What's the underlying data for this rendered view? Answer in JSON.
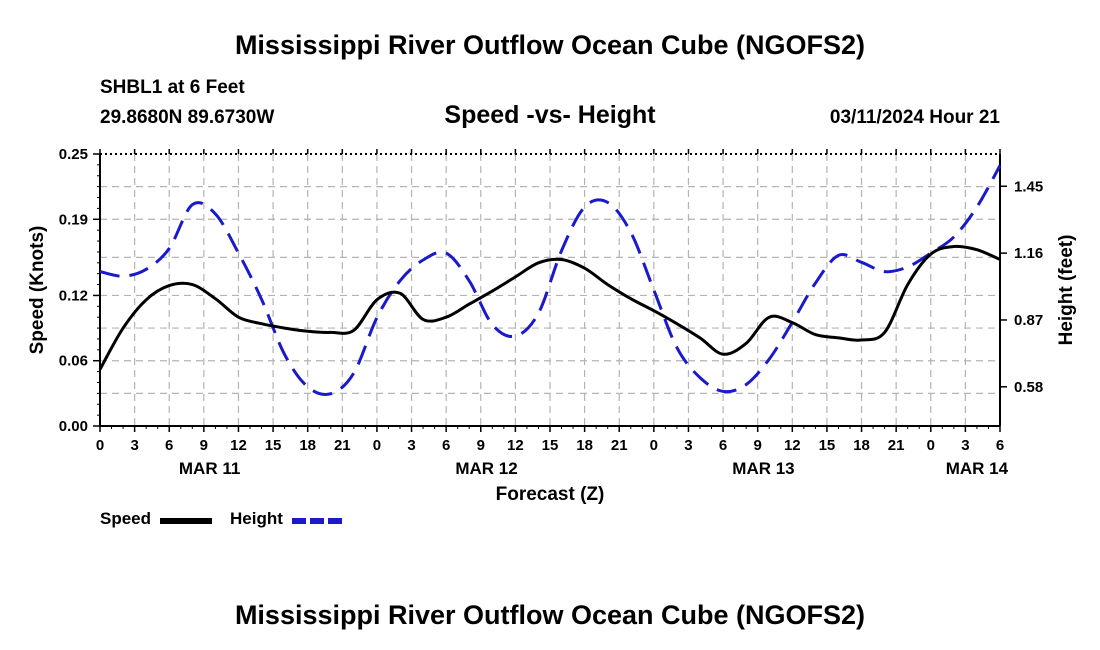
{
  "title": "Mississippi River Outflow Ocean Cube (NGOFS2)",
  "title_repeat": "Mississippi River Outflow Ocean Cube (NGOFS2)",
  "station": "SHBL1 at 6 Feet",
  "coordinates": "29.8680N  89.6730W",
  "forecast_time": "03/11/2024 Hour 21",
  "legend": {
    "speed_label": "Speed",
    "height_label": "Height"
  },
  "colors": {
    "speed": "#000000",
    "height": "#1a1acc",
    "grid": "#b4b4b4"
  },
  "chart_data": {
    "type": "line",
    "title": "Speed -vs- Height",
    "xlabel": "Forecast (Z)",
    "ylabel": "Speed (Knots)",
    "y2label": "Height (feet)",
    "grid": true,
    "xlim": [
      0,
      78
    ],
    "ylim": [
      0,
      0.25
    ],
    "y2lim": [
      0.41,
      1.59
    ],
    "yticks": [
      0,
      0.06,
      0.12,
      0.19,
      0.25
    ],
    "ytick_labels": [
      "0.00",
      "0.06",
      "0.12",
      "0.19",
      "0.25"
    ],
    "y2ticks": [
      0.58,
      0.87,
      1.16,
      1.45
    ],
    "y2tick_labels": [
      "0.58",
      "0.87",
      "1.16",
      "1.45"
    ],
    "xticks": [
      0,
      3,
      6,
      9,
      12,
      15,
      18,
      21,
      24,
      27,
      30,
      33,
      36,
      39,
      42,
      45,
      48,
      51,
      54,
      57,
      60,
      63,
      66,
      69,
      72,
      75,
      78
    ],
    "xtick_labels": [
      "0",
      "3",
      "6",
      "9",
      "12",
      "15",
      "18",
      "21",
      "0",
      "3",
      "6",
      "9",
      "12",
      "15",
      "18",
      "21",
      "0",
      "3",
      "6",
      "9",
      "12",
      "15",
      "18",
      "21",
      "0",
      "3",
      "6"
    ],
    "day_labels": [
      {
        "x": 9.5,
        "label": "MAR 11"
      },
      {
        "x": 33.5,
        "label": "MAR 12"
      },
      {
        "x": 57.5,
        "label": "MAR 13"
      },
      {
        "x": 76,
        "label": "MAR 14"
      }
    ],
    "series": [
      {
        "name": "Speed",
        "axis": "left",
        "style": "solid",
        "x": [
          0,
          2,
          4,
          6,
          8,
          10,
          12,
          14,
          16,
          18,
          20,
          22,
          24,
          26,
          28,
          30,
          32,
          34,
          36,
          38,
          40,
          42,
          44,
          46,
          48,
          50,
          52,
          54,
          56,
          58,
          60,
          62,
          64,
          66,
          68,
          70,
          72,
          74,
          76,
          78
        ],
        "values": [
          0.052,
          0.09,
          0.116,
          0.129,
          0.13,
          0.117,
          0.1,
          0.094,
          0.09,
          0.087,
          0.086,
          0.088,
          0.116,
          0.122,
          0.098,
          0.1,
          0.112,
          0.124,
          0.137,
          0.15,
          0.153,
          0.145,
          0.13,
          0.117,
          0.106,
          0.094,
          0.081,
          0.066,
          0.076,
          0.1,
          0.095,
          0.084,
          0.081,
          0.079,
          0.086,
          0.13,
          0.158,
          0.165,
          0.162,
          0.153
        ]
      },
      {
        "name": "Height",
        "axis": "right",
        "style": "dashed",
        "x": [
          0,
          2,
          4,
          6,
          8,
          10,
          12,
          14,
          16,
          18,
          20,
          22,
          24,
          26,
          28,
          30,
          32,
          34,
          36,
          38,
          40,
          42,
          44,
          46,
          48,
          50,
          52,
          54,
          56,
          58,
          60,
          62,
          64,
          66,
          68,
          70,
          72,
          74,
          76,
          78
        ],
        "values": [
          1.08,
          1.06,
          1.09,
          1.18,
          1.37,
          1.33,
          1.16,
          0.96,
          0.72,
          0.58,
          0.55,
          0.64,
          0.88,
          1.04,
          1.13,
          1.16,
          1.04,
          0.85,
          0.8,
          0.9,
          1.17,
          1.36,
          1.38,
          1.25,
          1.0,
          0.75,
          0.62,
          0.56,
          0.59,
          0.7,
          0.86,
          1.03,
          1.15,
          1.12,
          1.08,
          1.1,
          1.16,
          1.23,
          1.36,
          1.54
        ]
      }
    ]
  }
}
